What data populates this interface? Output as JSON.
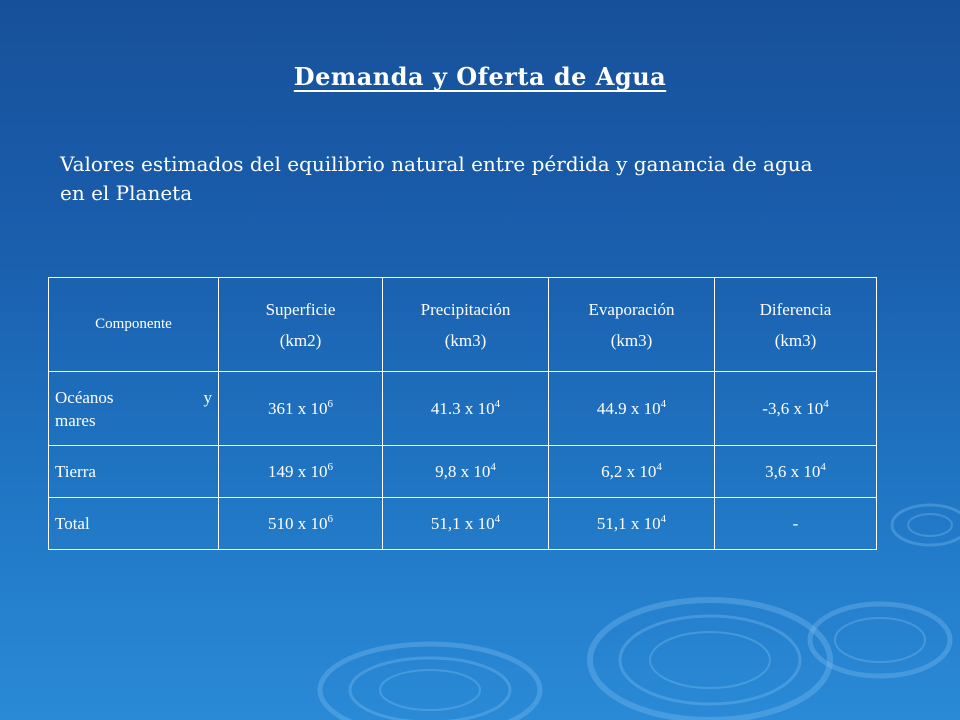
{
  "title": "Demanda y Oferta de Agua",
  "subtitle": "Valores estimados del equilibrio natural entre  pérdida y ganancia de agua en el Planeta",
  "table": {
    "headers": [
      {
        "line1": "Componente",
        "line2": ""
      },
      {
        "line1": "Superficie",
        "line2": "(km2)"
      },
      {
        "line1": "Precipitación",
        "line2": "(km3)"
      },
      {
        "line1": "Evaporación",
        "line2": "(km3)"
      },
      {
        "line1": "Diferencia",
        "line2": "(km3)"
      }
    ],
    "rows": [
      {
        "component_a": "Océanos",
        "component_b": "y",
        "component_c": "mares",
        "superficie": {
          "base": "361 x 10",
          "exp": "6"
        },
        "precipitacion": {
          "base": "41.3 x 10",
          "exp": "4"
        },
        "evaporacion": {
          "base": "44.9 x 10",
          "exp": "4"
        },
        "diferencia": {
          "base": "-3,6 x 10",
          "exp": "4"
        }
      },
      {
        "component": "Tierra",
        "superficie": {
          "base": "149 x 10",
          "exp": "6"
        },
        "precipitacion": {
          "base": "9,8 x 10",
          "exp": "4"
        },
        "evaporacion": {
          "base": "6,2 x 10",
          "exp": "4"
        },
        "diferencia": {
          "base": "3,6 x 10",
          "exp": "4"
        }
      },
      {
        "component": "Total",
        "superficie": {
          "base": "510 x 10",
          "exp": "6"
        },
        "precipitacion": {
          "base": "51,1 x 10",
          "exp": "4"
        },
        "evaporacion": {
          "base": "51,1 x 10",
          "exp": "4"
        },
        "diferencia": {
          "base": "-",
          "exp": ""
        }
      }
    ]
  },
  "colors": {
    "background_top": "#17509a",
    "background_bottom": "#2a8ad6",
    "text": "#ffffff",
    "border": "#ffffff"
  }
}
